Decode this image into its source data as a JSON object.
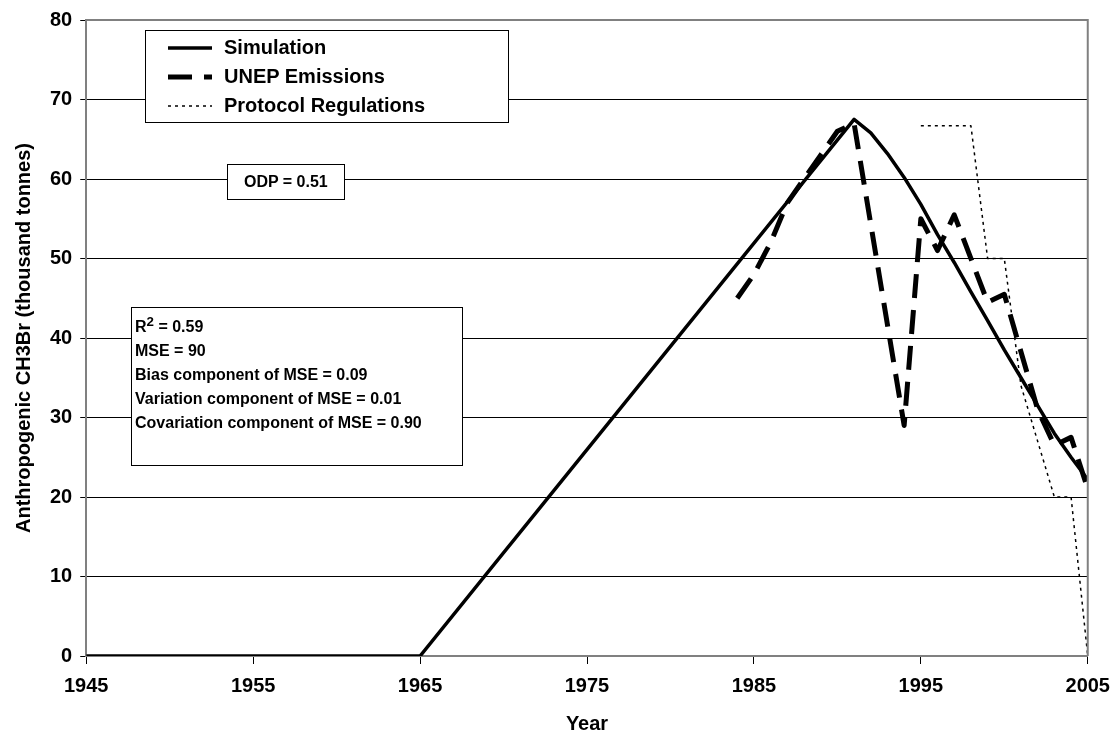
{
  "chart_data": {
    "type": "line",
    "xlabel": "Year",
    "ylabel": "Anthropogenic CH3Br (thousand tonnes)",
    "xlim": [
      1945,
      2005
    ],
    "xticks": [
      1945,
      1955,
      1965,
      1975,
      1985,
      1995,
      2005
    ],
    "ylim": [
      0,
      80
    ],
    "yticks": [
      0,
      10,
      20,
      30,
      40,
      50,
      60,
      70,
      80
    ],
    "grid": "y",
    "legend": "top left",
    "marker": "none",
    "annotations": [
      "ODP = 0.51",
      "R$^{2}$ = 0.59\nMSE = 90\nBias component of MSE = 0.09\nVariation component of MSE = 0.01\nCovariation component of MSE = 0.90"
    ],
    "series": [
      {
        "name": "Simulation",
        "color": "#000000",
        "line_style": "solid",
        "x": [
          1945,
          1965,
          1991,
          1992,
          1993,
          1994,
          1995,
          1996,
          1997,
          1998,
          1999,
          2000,
          2001,
          2002,
          2003,
          2004,
          2005
        ],
        "values": [
          0,
          0,
          67.5,
          65.8,
          63.2,
          60.2,
          56.8,
          53,
          49.5,
          45.8,
          42.2,
          38.5,
          35,
          31.5,
          28,
          25,
          22.2
        ]
      },
      {
        "name": "UNEP Emissions",
        "color": "#000000",
        "line_style": "dashed",
        "x": [
          1984,
          1985,
          1986,
          1987,
          1988,
          1989,
          1990,
          1991,
          1994,
          1995,
          1996,
          1997,
          1999,
          2000,
          2002,
          2003,
          2004,
          2005
        ],
        "values": [
          45,
          48,
          52,
          57,
          60,
          63,
          66,
          67,
          29,
          55,
          51,
          55.5,
          44.5,
          45.5,
          31,
          26.5,
          27.5,
          21
        ]
      },
      {
        "name": "Protocol Regulations",
        "color": "#000000",
        "line_style": "dotted",
        "x": [
          1995,
          1998,
          1999,
          2000,
          2001,
          2002,
          2003,
          2004,
          2005
        ],
        "values": [
          66.7,
          66.7,
          50,
          50,
          34,
          27,
          20,
          20,
          0
        ]
      }
    ]
  }
}
